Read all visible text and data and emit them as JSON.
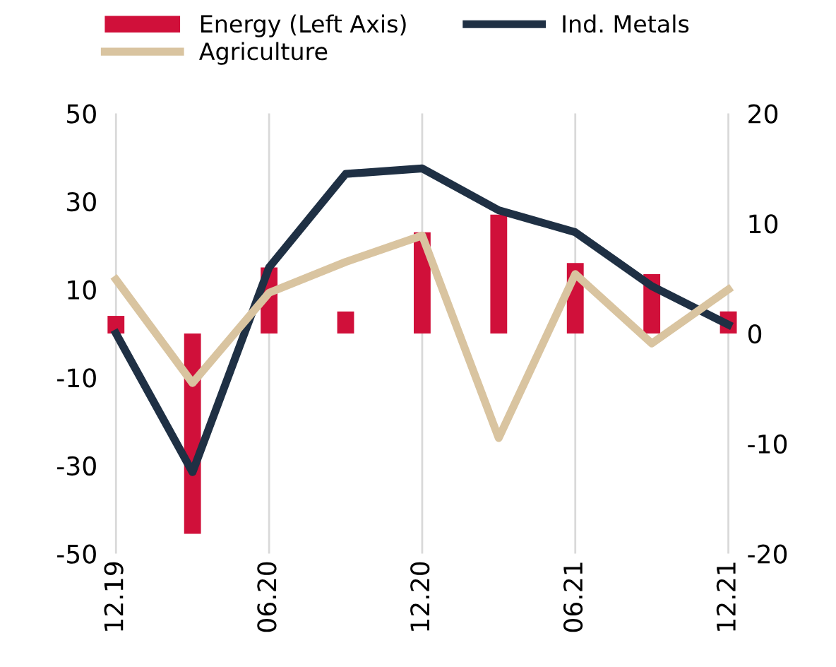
{
  "chart_data": {
    "type": "bar",
    "categories": [
      "12.19",
      null,
      "06.20",
      null,
      "12.20",
      null,
      "06.21",
      null,
      "12.21"
    ],
    "series": [
      {
        "name": "Energy (Left Axis)",
        "color": "#d0103a",
        "values": [
          4,
          -45.5,
          15,
          5,
          23,
          27,
          16,
          13.5,
          5
        ]
      },
      {
        "name": "Ind. Metals",
        "type": "line",
        "axis": "y2",
        "color": "#1f3044",
        "values": [
          0,
          -12.6,
          6,
          14.5,
          15,
          11.2,
          9.2,
          4.3,
          0.8
        ]
      },
      {
        "name": "Agriculture",
        "type": "line",
        "axis": "y2",
        "color": "#d9c4a0",
        "values": [
          4.9,
          -4.5,
          3.7,
          6.5,
          8.9,
          -9.5,
          5.4,
          -0.9,
          4.0
        ]
      }
    ],
    "ylim": [
      -50,
      50
    ],
    "yticks": [
      -50,
      -30,
      -10,
      10,
      30,
      50
    ],
    "y2lim": [
      -20,
      20
    ],
    "y2ticks": [
      -20,
      -10,
      0,
      10,
      20
    ],
    "grid": "x",
    "legend": "top",
    "marker": "none",
    "line_style": "solid"
  }
}
